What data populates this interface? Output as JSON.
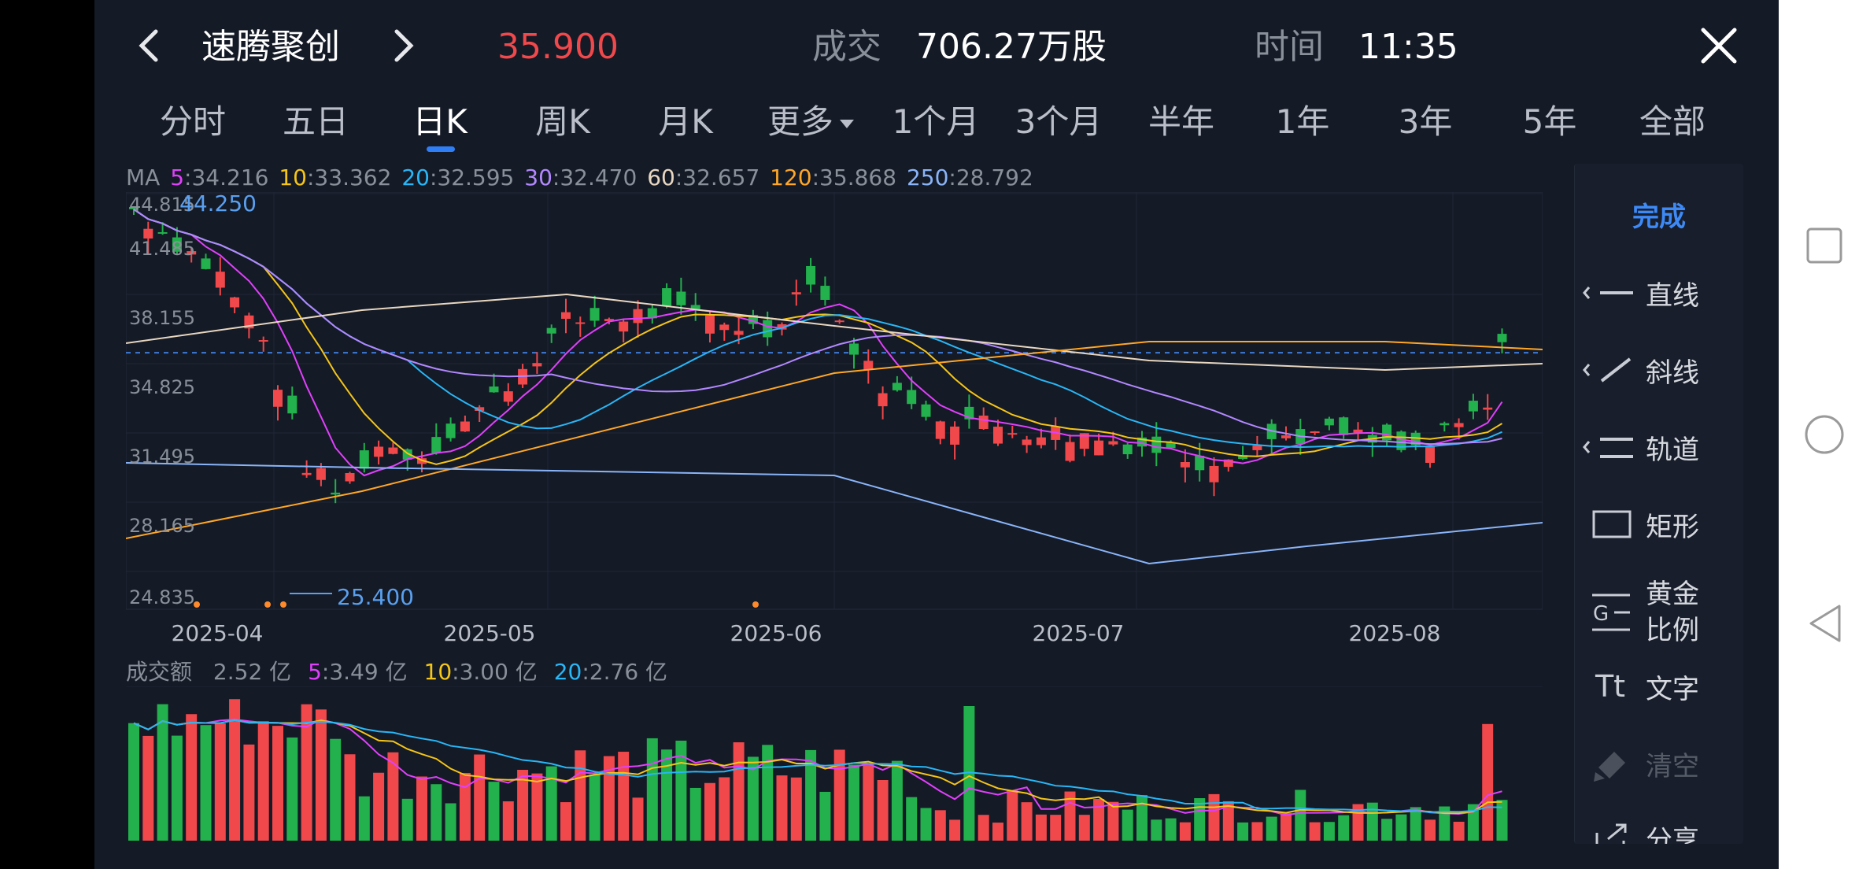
{
  "header": {
    "stock_name": "速腾聚创",
    "price": "35.900",
    "volume_label": "成交",
    "volume_value": "706.27万股",
    "time_label": "时间",
    "time_value": "11:35"
  },
  "tabs": [
    {
      "label": "分时"
    },
    {
      "label": "五日"
    },
    {
      "label": "日K"
    },
    {
      "label": "周K"
    },
    {
      "label": "月K"
    },
    {
      "label": "更多"
    },
    {
      "label": "1个月"
    },
    {
      "label": "3个月"
    },
    {
      "label": "半年"
    },
    {
      "label": "1年"
    },
    {
      "label": "3年"
    },
    {
      "label": "5年"
    },
    {
      "label": "全部"
    }
  ],
  "active_tab": "日K",
  "ma": {
    "label": "MA",
    "items": [
      {
        "period": "5",
        "value": ":34.216",
        "color": "#e040fb"
      },
      {
        "period": "10",
        "value": ":33.362",
        "color": "#f5c518"
      },
      {
        "period": "20",
        "value": ":32.595",
        "color": "#29b6f6"
      },
      {
        "period": "30",
        "value": ":32.470",
        "color": "#b388ff"
      },
      {
        "period": "60",
        "value": ":32.657",
        "color": "#e8d7c0"
      },
      {
        "period": "120",
        "value": ":35.868",
        "color": "#ffa726"
      },
      {
        "period": "250",
        "value": ":28.792",
        "color": "#8ab4f8"
      }
    ]
  },
  "price_axis": [
    "44.815",
    "41.485",
    "38.155",
    "34.825",
    "31.495",
    "28.165",
    "24.835"
  ],
  "max_label": "44.250",
  "min_label": "25.400",
  "date_axis": [
    "2025-04",
    "2025-05",
    "2025-06",
    "2025-07",
    "2025-08"
  ],
  "turnover": {
    "label": "成交额",
    "current": "2.52 亿",
    "items": [
      {
        "period": "5",
        "value": ":3.49 亿",
        "color": "#e040fb"
      },
      {
        "period": "10",
        "value": ":3.00 亿",
        "color": "#f5c518"
      },
      {
        "period": "20",
        "value": ":2.76 亿",
        "color": "#29b6f6"
      }
    ]
  },
  "tools": {
    "done": "完成",
    "items": [
      {
        "label": "直线",
        "icon": "line-icon"
      },
      {
        "label": "斜线",
        "icon": "diagonal-line-icon"
      },
      {
        "label": "轨道",
        "icon": "channel-icon"
      },
      {
        "label": "矩形",
        "icon": "rectangle-icon"
      },
      {
        "label": "黄金\n比例",
        "label1": "黄金",
        "label2": "比例",
        "icon": "golden-ratio-icon"
      },
      {
        "label": "文字",
        "icon": "text-icon"
      },
      {
        "label": "清空",
        "icon": "eraser-icon"
      },
      {
        "label": "分享",
        "icon": "share-icon"
      }
    ]
  },
  "colors": {
    "up": "#f0484b",
    "down": "#22b14c",
    "accent": "#3d8af7",
    "price": "#f0484b"
  },
  "chart_data": {
    "type": "candlestick",
    "y_range": [
      24.835,
      44.815
    ],
    "x_ticks": [
      "2025-04",
      "2025-05",
      "2025-06",
      "2025-07",
      "2025-08"
    ],
    "last_price": 35.9,
    "max": 44.25,
    "min": 25.4
  }
}
